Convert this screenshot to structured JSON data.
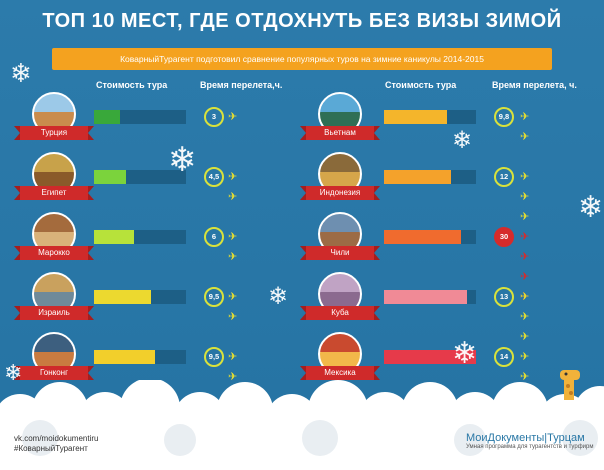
{
  "title": "ТОП 10 МЕСТ, ГДЕ ОТДОХНУТЬ БЕЗ ВИЗЫ ЗИМОЙ",
  "subtitle": "КоварныйТурагент подготовил сравнение популярных туров на зимние каникулы 2014-2015",
  "headers": {
    "cost": "Стоимость тура",
    "flight": "Время перелета,ч.",
    "flight_right": "Время перелета, ч."
  },
  "left": [
    {
      "country": "Турция",
      "flight": "3",
      "planes": 1,
      "cost_fraction": 0.28,
      "bar_color": "#39a83a"
    },
    {
      "country": "Египет",
      "flight": "4,5",
      "planes": 2,
      "cost_fraction": 0.35,
      "bar_color": "#7bd33c"
    },
    {
      "country": "Марокко",
      "flight": "6",
      "planes": 2,
      "cost_fraction": 0.43,
      "bar_color": "#b7e23a"
    },
    {
      "country": "Израиль",
      "flight": "9,5",
      "planes": 2,
      "cost_fraction": 0.62,
      "bar_color": "#ecd92f"
    },
    {
      "country": "Гонконг",
      "flight": "9,5",
      "planes": 2,
      "cost_fraction": 0.66,
      "bar_color": "#f2cf2b"
    }
  ],
  "right": [
    {
      "country": "Вьетнам",
      "flight": "9,8",
      "planes": 2,
      "cost_fraction": 0.68,
      "bar_color": "#f4b52b"
    },
    {
      "country": "Индонезия",
      "flight": "12",
      "planes": 3,
      "cost_fraction": 0.73,
      "bar_color": "#f4a22b"
    },
    {
      "country": "Чили",
      "flight": "30",
      "planes": 4,
      "cost_fraction": 0.84,
      "bar_color": "#f06b2e"
    },
    {
      "country": "Куба",
      "flight": "13",
      "planes": 3,
      "cost_fraction": 0.9,
      "bar_color": "#f08a96"
    },
    {
      "country": "Мексика",
      "flight": "14",
      "planes": 3,
      "cost_fraction": 1.0,
      "bar_color": "#e63a4a"
    }
  ],
  "colors": {
    "background": "#2a78a6",
    "accent": "#f4a21f",
    "ribbon": "#cf2a2a",
    "track": "#1d5f86",
    "circle": "#d9e23b",
    "circle_hot": "#d62b2b"
  },
  "footer": {
    "link": "vk.com/moidokumentiru",
    "hashtag": "#КоварныйТурагент",
    "brand": "МоиДокументы|Турцам",
    "tagline": "Умная программа для турагентств и турфирм"
  },
  "icons": {
    "plane": "plane-icon",
    "snowflake": "snowflake-icon"
  }
}
